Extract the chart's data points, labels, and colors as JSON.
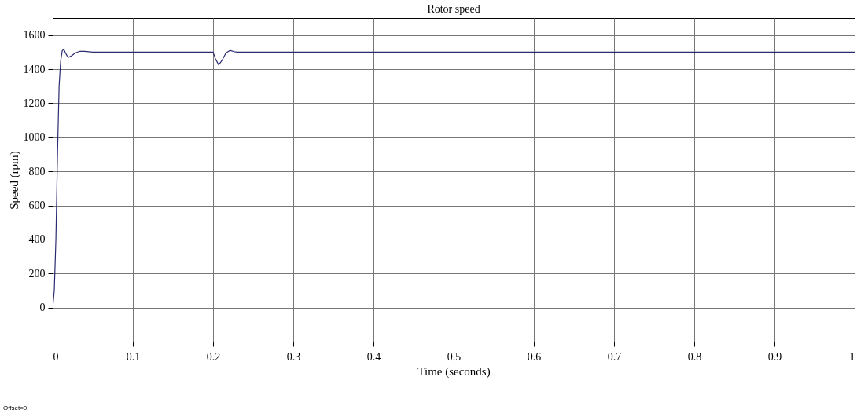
{
  "chart_data": {
    "type": "line",
    "title": "Rotor speed",
    "xlabel": "Time (seconds)",
    "ylabel": "Speed (rpm)",
    "x": [
      0,
      0.002,
      0.004,
      0.006,
      0.008,
      0.01,
      0.012,
      0.014,
      0.016,
      0.018,
      0.02,
      0.024,
      0.028,
      0.034,
      0.04,
      0.05,
      0.1,
      0.2,
      0.203,
      0.207,
      0.211,
      0.216,
      0.221,
      0.226,
      0.23,
      0.3,
      0.5,
      0.7,
      0.9,
      1
    ],
    "series": [
      {
        "color": "#2b2b70",
        "values": [
          0,
          100,
          400,
          900,
          1300,
          1450,
          1510,
          1515,
          1495,
          1478,
          1470,
          1480,
          1495,
          1505,
          1505,
          1500,
          1500,
          1500,
          1460,
          1425,
          1450,
          1495,
          1510,
          1503,
          1500,
          1500,
          1500,
          1500,
          1500,
          1500
        ]
      }
    ],
    "xlim": [
      0,
      1
    ],
    "ylim": [
      -200,
      1700
    ],
    "xticks": [
      0,
      0.1,
      0.2,
      0.3,
      0.4,
      0.5,
      0.6,
      0.7,
      0.8,
      0.9,
      1
    ],
    "yticks": [
      0,
      200,
      400,
      600,
      800,
      1000,
      1200,
      1400,
      1600
    ],
    "grid": true,
    "legend": false,
    "marker": "none",
    "line_style": "solid",
    "annotations": [
      "Offset=0"
    ]
  }
}
